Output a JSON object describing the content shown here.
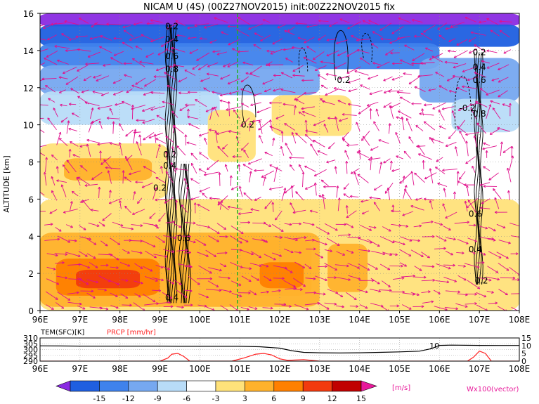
{
  "title": "NICAM U (4S) (00Z27NOV2015) init:00Z22NOV2015 fix",
  "chart_data": [
    {
      "type": "heatmap",
      "panel": "main",
      "title": "NICAM U (4S) (00Z27NOV2015) init:00Z22NOV2015 fix",
      "xlabel": "",
      "ylabel": "ALTITUDE [km]",
      "x_ticks": [
        "96E",
        "97E",
        "98E",
        "99E",
        "100E",
        "101E",
        "102E",
        "103E",
        "104E",
        "105E",
        "106E",
        "107E",
        "108E"
      ],
      "y_ticks": [
        "0",
        "2",
        "4",
        "6",
        "8",
        "10",
        "12",
        "14",
        "16"
      ],
      "xlim": [
        96,
        108
      ],
      "ylim": [
        0,
        16
      ],
      "grid": true,
      "marker_line_lon": 101,
      "contour_labels": [
        {
          "text": "0.2",
          "lon": 99.3,
          "alt": 15.3
        },
        {
          "text": "0.4",
          "lon": 99.3,
          "alt": 14.6
        },
        {
          "text": "0.6",
          "lon": 99.3,
          "alt": 13.7
        },
        {
          "text": "0.8",
          "lon": 99.3,
          "alt": 13.0
        },
        {
          "text": "0.2",
          "lon": 99.25,
          "alt": 8.4
        },
        {
          "text": "0.4",
          "lon": 99.25,
          "alt": 7.8
        },
        {
          "text": "0.2",
          "lon": 99.0,
          "alt": 6.6
        },
        {
          "text": "0.6",
          "lon": 99.6,
          "alt": 3.9
        },
        {
          "text": "0.4",
          "lon": 99.3,
          "alt": 0.7
        },
        {
          "text": "0.2",
          "lon": 101.2,
          "alt": 10.0
        },
        {
          "text": "0.2",
          "lon": 103.6,
          "alt": 12.4
        },
        {
          "text": "0.2",
          "lon": 107.0,
          "alt": 13.9
        },
        {
          "text": "0.4",
          "lon": 107.0,
          "alt": 13.1
        },
        {
          "text": "0.6",
          "lon": 107.0,
          "alt": 12.4
        },
        {
          "text": "-0.2",
          "lon": 106.7,
          "alt": 10.9
        },
        {
          "text": "0.8",
          "lon": 107.0,
          "alt": 10.6
        },
        {
          "text": "0.6",
          "lon": 106.9,
          "alt": 5.2
        },
        {
          "text": "0.4",
          "lon": 106.9,
          "alt": 3.3
        },
        {
          "text": "0.2",
          "lon": 107.05,
          "alt": 1.6
        }
      ],
      "u_wind_zones": [
        {
          "lon": [
            96,
            108
          ],
          "alt": [
            15.3,
            16
          ],
          "value": -15
        },
        {
          "lon": [
            96,
            108
          ],
          "alt": [
            14.2,
            15.4
          ],
          "value": -12
        },
        {
          "lon": [
            96,
            106
          ],
          "alt": [
            13.0,
            14.4
          ],
          "value": -9
        },
        {
          "lon": [
            96,
            103
          ],
          "alt": [
            11.6,
            13.2
          ],
          "value": -6
        },
        {
          "lon": [
            96,
            100.5
          ],
          "alt": [
            10.0,
            11.8
          ],
          "value": -3
        },
        {
          "lon": [
            105.5,
            108
          ],
          "alt": [
            11.2,
            13.6
          ],
          "value": -6
        },
        {
          "lon": [
            106.3,
            108
          ],
          "alt": [
            9.6,
            11.4
          ],
          "value": -3
        },
        {
          "lon": [
            96,
            99.2
          ],
          "alt": [
            6.0,
            9.0
          ],
          "value": 3
        },
        {
          "lon": [
            96.6,
            98.8
          ],
          "alt": [
            7.0,
            8.2
          ],
          "value": 6
        },
        {
          "lon": [
            100.2,
            101.4
          ],
          "alt": [
            8.0,
            10.8
          ],
          "value": 3
        },
        {
          "lon": [
            101.8,
            103.8
          ],
          "alt": [
            9.4,
            11.6
          ],
          "value": 3
        },
        {
          "lon": [
            96,
            108
          ],
          "alt": [
            0,
            6.0
          ],
          "value": 3
        },
        {
          "lon": [
            96,
            103.0
          ],
          "alt": [
            0.2,
            4.2
          ],
          "value": 6
        },
        {
          "lon": [
            96.4,
            99.0
          ],
          "alt": [
            0.8,
            2.8
          ],
          "value": 9
        },
        {
          "lon": [
            96.9,
            98.5
          ],
          "alt": [
            1.2,
            2.2
          ],
          "value": 12
        },
        {
          "lon": [
            101.0,
            102.8
          ],
          "alt": [
            0.8,
            3.8
          ],
          "value": 6
        },
        {
          "lon": [
            101.5,
            102.6
          ],
          "alt": [
            1.2,
            2.6
          ],
          "value": 9
        },
        {
          "lon": [
            103.2,
            104.2
          ],
          "alt": [
            1.0,
            3.6
          ],
          "value": 6
        }
      ]
    },
    {
      "type": "line",
      "panel": "lower",
      "left_label": "TEM(SFC)[K]",
      "right_label": "PRCP [mm/hr]",
      "left_ticks": [
        "290",
        "295",
        "300",
        "305",
        "310"
      ],
      "right_ticks": [
        "0",
        "5",
        "10",
        "15"
      ],
      "x_ticks": [
        "96E",
        "97E",
        "98E",
        "99E",
        "100E",
        "101E",
        "102E",
        "103E",
        "104E",
        "105E",
        "106E",
        "107E",
        "108E"
      ],
      "xlim": [
        96,
        108
      ],
      "left_ylim": [
        290,
        310
      ],
      "right_ylim": [
        0,
        15
      ],
      "annotations": [
        {
          "text": "10",
          "lon": 105.75,
          "value": 10
        }
      ],
      "series": [
        {
          "name": "TEM(SFC)[K]",
          "axis": "left",
          "color": "#000000",
          "x": [
            96,
            96.5,
            97,
            98,
            99,
            99.5,
            100,
            100.5,
            101,
            101.5,
            102,
            102.3,
            102.6,
            103,
            103.5,
            104,
            104.5,
            105,
            105.5,
            105.8,
            106,
            106.3,
            107,
            107.5,
            108
          ],
          "y": [
            303.2,
            303.1,
            303.0,
            303.0,
            303.0,
            302.8,
            302.8,
            302.8,
            302.8,
            302.4,
            301.2,
            299.0,
            297.6,
            297.2,
            297.0,
            297.2,
            297.6,
            298.0,
            298.6,
            300.8,
            303.6,
            303.8,
            303.6,
            303.5,
            303.5
          ]
        },
        {
          "name": "PRCP [mm/hr]",
          "axis": "right",
          "color": "#ff2020",
          "x": [
            96,
            99.0,
            99.2,
            99.3,
            99.45,
            99.6,
            99.75,
            100.8,
            101.1,
            101.4,
            101.6,
            101.8,
            102.0,
            102.2,
            102.6,
            103.0,
            106.7,
            106.85,
            107.0,
            107.15,
            107.3,
            108
          ],
          "y": [
            0,
            0,
            2.0,
            4.5,
            5.0,
            3.0,
            0,
            0,
            2.0,
            4.5,
            5.0,
            4.0,
            1.5,
            0.5,
            1.0,
            0,
            0,
            2.5,
            6.5,
            5.0,
            0,
            0
          ]
        }
      ]
    }
  ],
  "colorbar": {
    "labels": [
      "-15",
      "-12",
      "-9",
      "-6",
      "-3",
      "3",
      "6",
      "9",
      "12",
      "15"
    ],
    "unit": "[m/s]",
    "vector_label": "Wx100(vector)",
    "colors": [
      "#8a2be2",
      "#1f5fe0",
      "#3f82ec",
      "#76a8f0",
      "#b8dcf8",
      "#ffffff",
      "#ffe27a",
      "#ffb22c",
      "#ff8000",
      "#f23a0e",
      "#c00000",
      "#e8189a"
    ]
  }
}
